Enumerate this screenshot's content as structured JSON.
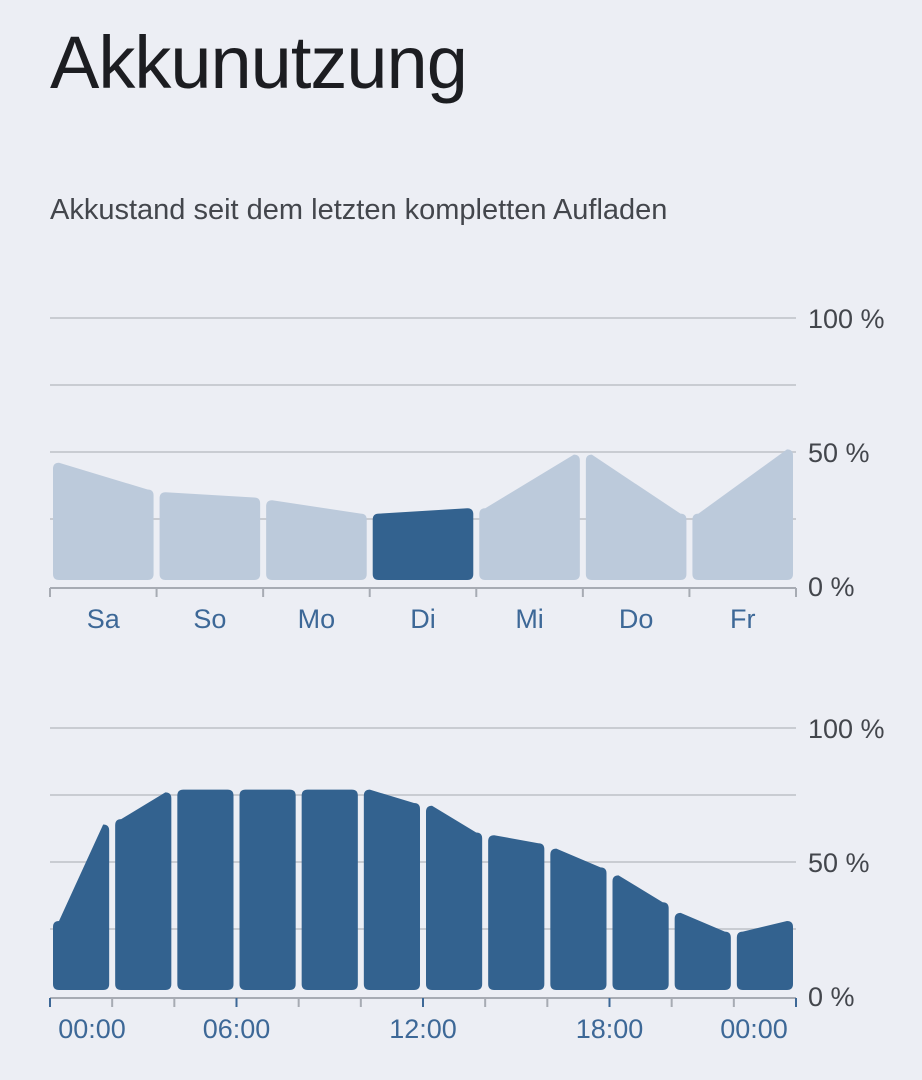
{
  "header": {
    "title": "Akkunutzung",
    "subtitle": "Akkustand seit dem letzten kompletten Aufladen"
  },
  "colors": {
    "background": "#eceef4",
    "bar_active": "#33628f",
    "bar_inactive": "#bccadb",
    "tick_label_blue": "#3d6897"
  },
  "chart_data": [
    {
      "type": "area",
      "name": "weekly",
      "y_ticks": [
        "0 %",
        "50 %",
        "100 %"
      ],
      "ylim": [
        0,
        100
      ],
      "grid": true,
      "categories": [
        "Sa",
        "So",
        "Mo",
        "Di",
        "Mi",
        "Do",
        "Fr"
      ],
      "selected": "Di",
      "series": [
        {
          "values": [
            {
              "start": 46,
              "end": 36
            },
            {
              "start": 35,
              "end": 33
            },
            {
              "start": 32,
              "end": 27
            },
            {
              "start": 27,
              "end": 29
            },
            {
              "start": 29,
              "end": 49
            },
            {
              "start": 49,
              "end": 27
            },
            {
              "start": 27,
              "end": 51
            }
          ]
        }
      ]
    },
    {
      "type": "area",
      "name": "daily",
      "y_ticks": [
        "0 %",
        "50 %",
        "100 %"
      ],
      "ylim": [
        0,
        100
      ],
      "grid": true,
      "x_tick_labels": [
        "00:00",
        "06:00",
        "12:00",
        "18:00",
        "00:00"
      ],
      "series": [
        {
          "values": [
            {
              "start": 28,
              "end": 64
            },
            {
              "start": 66,
              "end": 76
            },
            {
              "start": 77,
              "end": 77
            },
            {
              "start": 77,
              "end": 77
            },
            {
              "start": 77,
              "end": 77
            },
            {
              "start": 77,
              "end": 72
            },
            {
              "start": 71,
              "end": 61
            },
            {
              "start": 60,
              "end": 57
            },
            {
              "start": 55,
              "end": 48
            },
            {
              "start": 45,
              "end": 35
            },
            {
              "start": 31,
              "end": 24
            },
            {
              "start": 24,
              "end": 28
            }
          ]
        }
      ]
    }
  ]
}
